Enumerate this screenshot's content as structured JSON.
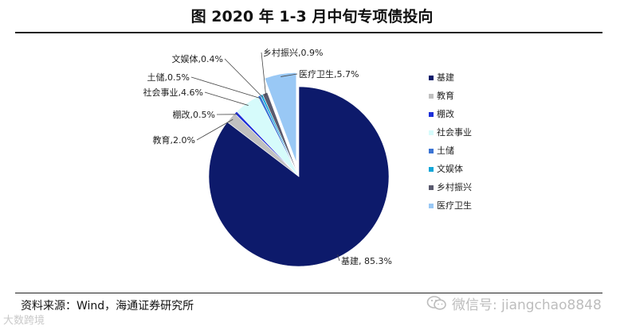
{
  "chart_data": {
    "type": "pie",
    "title": "图 2020 年 1-3 月中旬专项债投向",
    "categories": [
      "基建",
      "教育",
      "棚改",
      "社会事业",
      "土储",
      "文娱体",
      "乡村振兴",
      "医疗卫生"
    ],
    "values": [
      85.3,
      2.0,
      0.5,
      4.6,
      0.5,
      0.4,
      0.9,
      5.7
    ],
    "labels": [
      "基建, 85.3%",
      "教育,2.0%",
      "棚改,0.5%",
      "社会事业,4.6%",
      "土储,0.5%",
      "文娱体,0.4%",
      "乡村振兴,0.9%",
      "医疗卫生,5.7%"
    ],
    "colors": [
      "#0d1a6b",
      "#c0c0c0",
      "#1d2fd8",
      "#d6fbfb",
      "#3b74d4",
      "#12a6d8",
      "#5a5a6e",
      "#99c8f5"
    ],
    "exploded": [
      "医疗卫生"
    ],
    "legend_position": "right"
  },
  "source": "资料来源：Wind，海通证券研究所",
  "watermark_right": "微信号: jiangchao8848",
  "watermark_left": "大数跨境"
}
